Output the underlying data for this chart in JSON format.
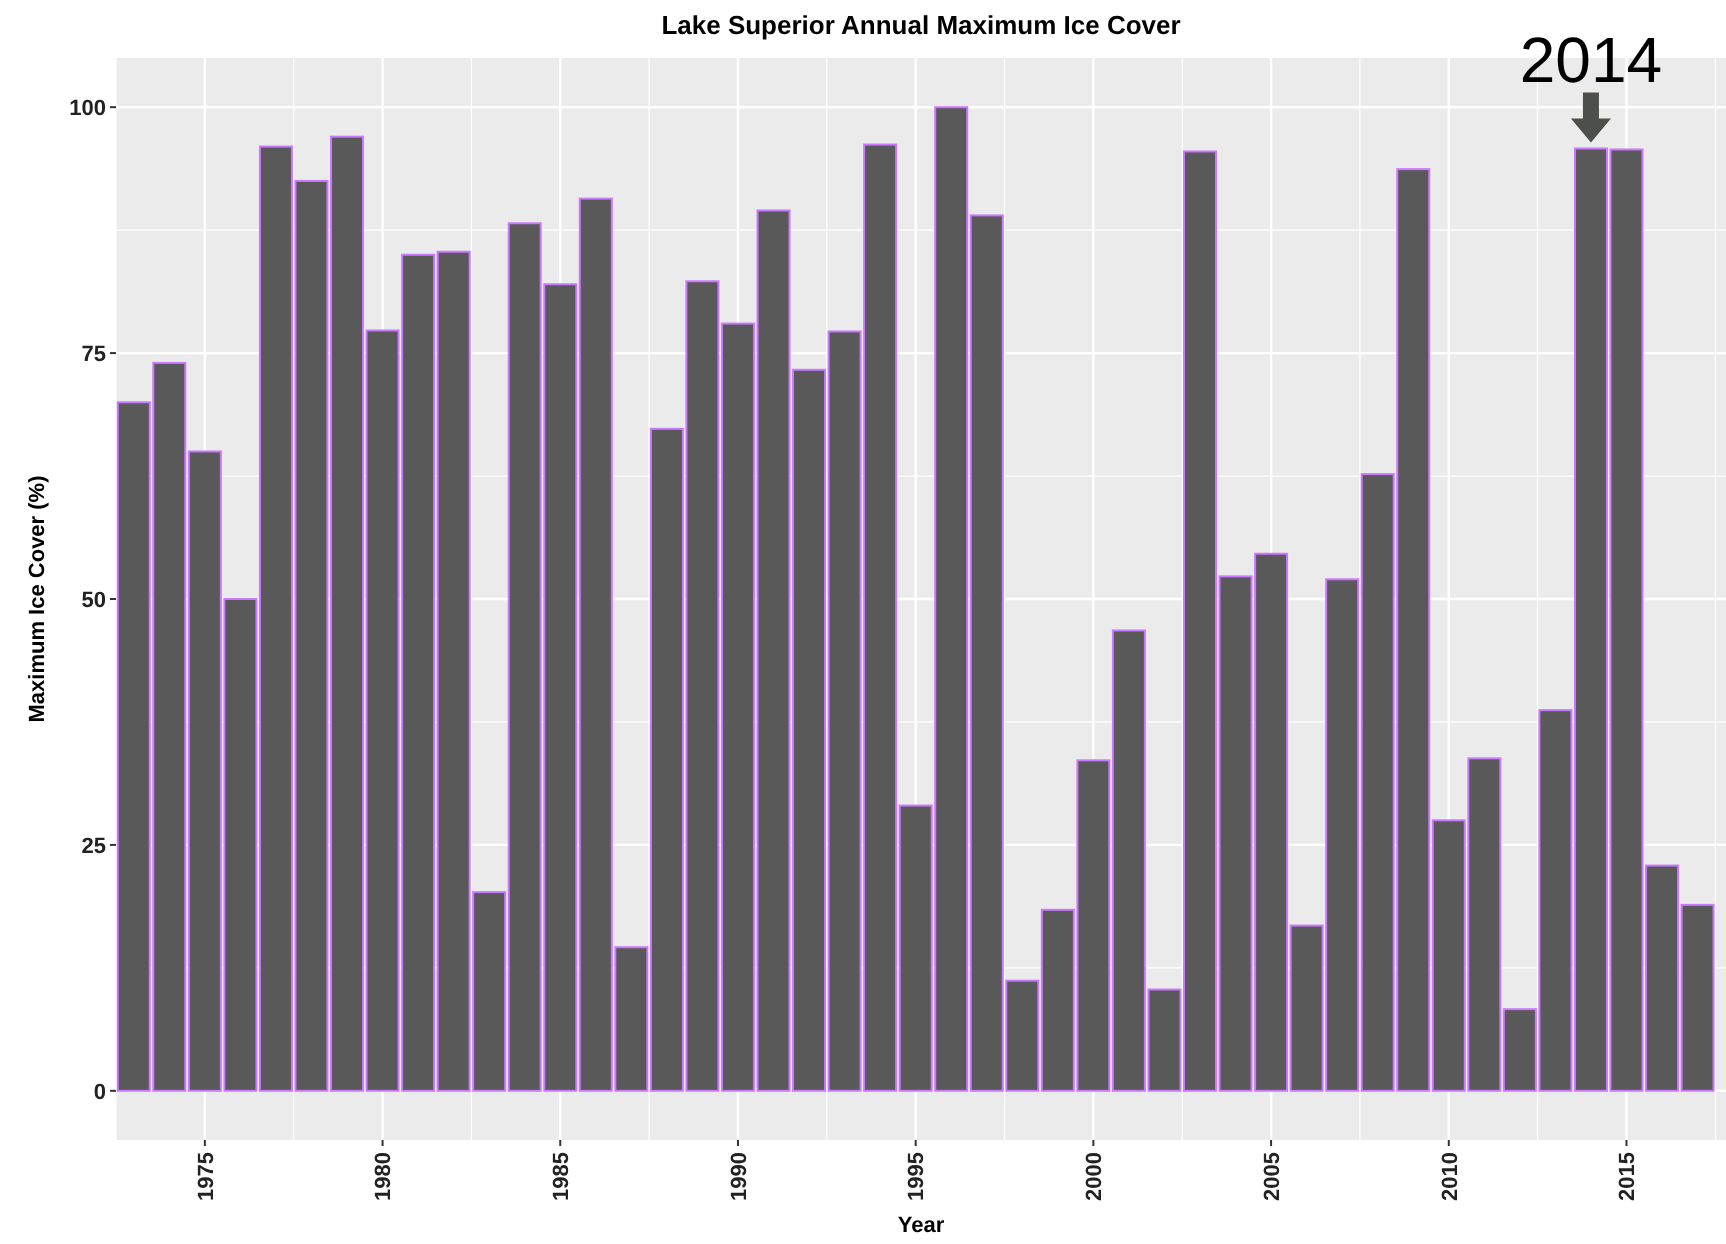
{
  "chart_data": {
    "type": "bar",
    "title": "Lake Superior Annual Maximum Ice Cover",
    "xlabel": "Year",
    "ylabel": "Maximum Ice Cover (%)",
    "x": [
      1973,
      1974,
      1975,
      1976,
      1977,
      1978,
      1979,
      1980,
      1981,
      1982,
      1983,
      1984,
      1985,
      1986,
      1987,
      1988,
      1989,
      1990,
      1991,
      1992,
      1993,
      1994,
      1995,
      1996,
      1997,
      1998,
      1999,
      2000,
      2001,
      2002,
      2003,
      2004,
      2005,
      2006,
      2007,
      2008,
      2009,
      2010,
      2011,
      2012,
      2013,
      2014,
      2015,
      2016,
      2017
    ],
    "values": [
      70,
      74,
      65,
      50,
      96,
      92.5,
      97,
      77.3,
      85,
      85.3,
      20.2,
      88.2,
      82,
      90.7,
      14.6,
      67.3,
      82.3,
      78,
      89.5,
      73.3,
      77.2,
      96.2,
      29,
      100,
      89,
      11.2,
      18.4,
      33.6,
      46.8,
      10.3,
      95.5,
      52.3,
      54.6,
      16.8,
      52,
      62.7,
      93.7,
      27.5,
      33.8,
      8.3,
      38.7,
      95.8,
      95.7,
      22.9,
      18.9
    ],
    "color": "#595959",
    "xlim": [
      1972.5,
      2017.8
    ],
    "xticks": [
      {
        "value": 1972.5,
        "label": null
      },
      1975,
      {
        "value": 1977.5,
        "label": null
      },
      1980,
      {
        "value": 1982.5,
        "label": null
      },
      1985,
      {
        "value": 1987.5,
        "label": null
      },
      1990,
      {
        "value": 1992.5,
        "label": null
      },
      1995,
      {
        "value": 1997.5,
        "label": null
      },
      2000,
      {
        "value": 2002.5,
        "label": null
      },
      2005,
      {
        "value": 2007.5,
        "label": null
      },
      2010,
      {
        "value": 2012.5,
        "label": null
      },
      2015,
      {
        "value": 2017.5,
        "label": null
      }
    ],
    "ylim": [
      -5,
      105
    ],
    "yticks": [
      0,
      {
        "value": 12.5,
        "label": null
      },
      25,
      {
        "value": 37.5,
        "label": null
      },
      50,
      {
        "value": 62.5,
        "label": null
      },
      75,
      {
        "value": 87.5,
        "label": null
      },
      100
    ],
    "grid": true,
    "annotations": [
      {
        "text": "2014",
        "x": 2014,
        "y": 95.8
      }
    ]
  }
}
